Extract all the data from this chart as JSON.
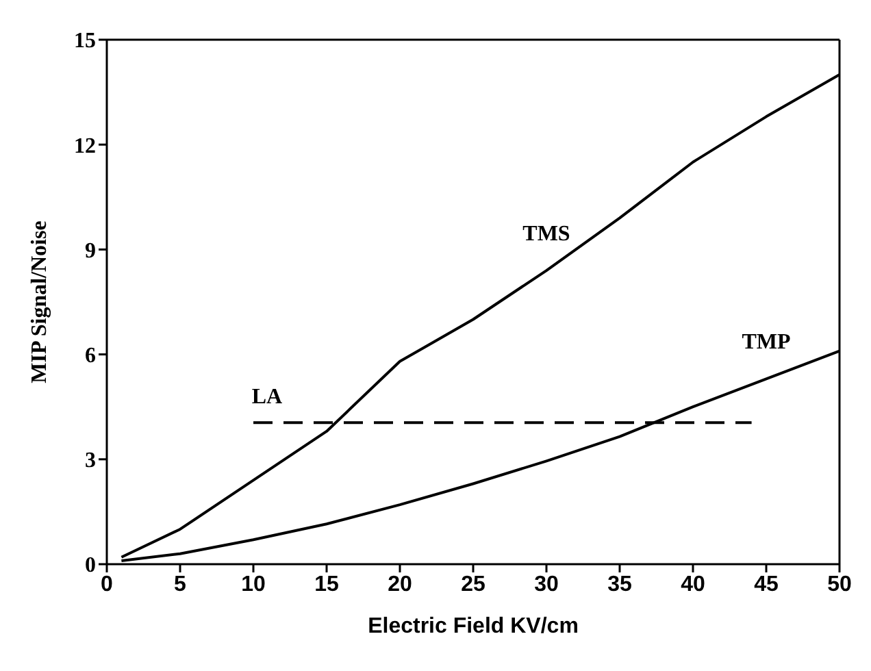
{
  "chart_data": {
    "type": "line",
    "xlabel": "Electric Field KV/cm",
    "ylabel": "MIP Signal/Noise",
    "xlim": [
      0,
      50
    ],
    "xticks": [
      0,
      5,
      10,
      15,
      20,
      25,
      30,
      35,
      40,
      45,
      50
    ],
    "ylim": [
      0,
      15
    ],
    "yticks": [
      0,
      3,
      6,
      9,
      12,
      15
    ],
    "grid": false,
    "marker": "none",
    "series": [
      {
        "name": "TMS",
        "color": "#000000",
        "line_style": "solid",
        "x": [
          1,
          5,
          10,
          15,
          20,
          25,
          30,
          35,
          40,
          45,
          50
        ],
        "values": [
          0.2,
          1.0,
          2.4,
          3.8,
          5.8,
          7.0,
          8.4,
          9.9,
          11.5,
          12.8,
          14.0
        ]
      },
      {
        "name": "TMP",
        "color": "#000000",
        "line_style": "solid",
        "x": [
          1,
          5,
          10,
          15,
          20,
          25,
          30,
          35,
          40,
          45,
          50
        ],
        "values": [
          0.1,
          0.3,
          0.7,
          1.15,
          1.7,
          2.3,
          2.95,
          3.65,
          4.5,
          5.3,
          6.1
        ]
      },
      {
        "name": "LA",
        "color": "#000000",
        "line_style": "dashed",
        "x": [
          10,
          44
        ],
        "values": [
          4.05,
          4.05
        ]
      }
    ]
  }
}
